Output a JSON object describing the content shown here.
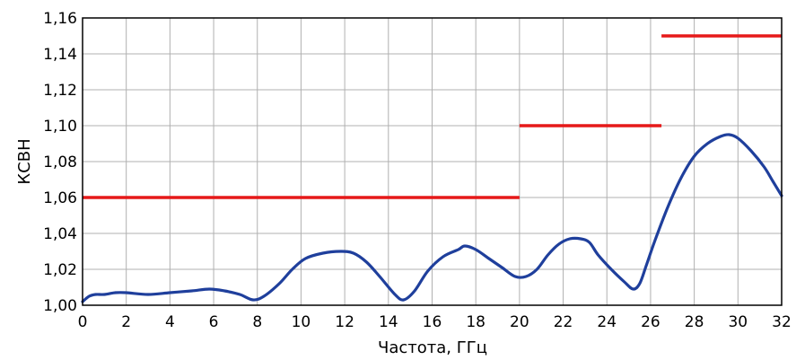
{
  "chart_data": {
    "type": "line",
    "title": "",
    "xlabel": "Частота, ГГц",
    "ylabel": "КСВН",
    "xlim": [
      0,
      32
    ],
    "ylim": [
      1.0,
      1.16
    ],
    "grid": true,
    "x_ticks": [
      "0",
      "2",
      "4",
      "6",
      "8",
      "10",
      "12",
      "14",
      "16",
      "18",
      "20",
      "22",
      "24",
      "26",
      "28",
      "30",
      "32"
    ],
    "y_ticks": [
      "1,00",
      "1,02",
      "1,04",
      "1,06",
      "1,08",
      "1,10",
      "1,12",
      "1,14",
      "1,16"
    ],
    "series": [
      {
        "color": "#1f3f9c",
        "x": [
          0,
          0.3,
          0.6,
          1,
          1.5,
          2,
          3,
          4,
          5,
          5.8,
          6.5,
          7.2,
          7.8,
          8.3,
          9,
          9.6,
          10.2,
          11,
          11.8,
          12.4,
          13,
          13.6,
          14.3,
          14.7,
          15.2,
          15.8,
          16.5,
          17.2,
          17.5,
          18,
          18.6,
          19.2,
          19.8,
          20.3,
          20.8,
          21.3,
          21.8,
          22.3,
          22.8,
          23.2,
          23.6,
          24.2,
          24.8,
          25.2,
          25.5,
          25.8,
          26.2,
          26.8,
          27.4,
          28,
          28.6,
          29.2,
          29.6,
          30,
          30.6,
          31.2,
          31.6,
          32
        ],
        "values": [
          1.002,
          1.005,
          1.006,
          1.006,
          1.007,
          1.007,
          1.006,
          1.007,
          1.008,
          1.009,
          1.008,
          1.006,
          1.003,
          1.005,
          1.012,
          1.02,
          1.026,
          1.029,
          1.03,
          1.029,
          1.024,
          1.016,
          1.006,
          1.003,
          1.008,
          1.019,
          1.027,
          1.031,
          1.033,
          1.031,
          1.026,
          1.021,
          1.016,
          1.016,
          1.02,
          1.028,
          1.034,
          1.037,
          1.037,
          1.035,
          1.028,
          1.02,
          1.013,
          1.009,
          1.012,
          1.022,
          1.036,
          1.055,
          1.071,
          1.083,
          1.09,
          1.094,
          1.095,
          1.093,
          1.086,
          1.077,
          1.069,
          1.061
        ]
      },
      {
        "color": "#e61919",
        "segments": [
          {
            "x": [
              0,
              20
            ],
            "value": 1.06
          },
          {
            "x": [
              20,
              26.5
            ],
            "value": 1.1
          },
          {
            "x": [
              26.5,
              32
            ],
            "value": 1.15
          }
        ]
      }
    ]
  }
}
